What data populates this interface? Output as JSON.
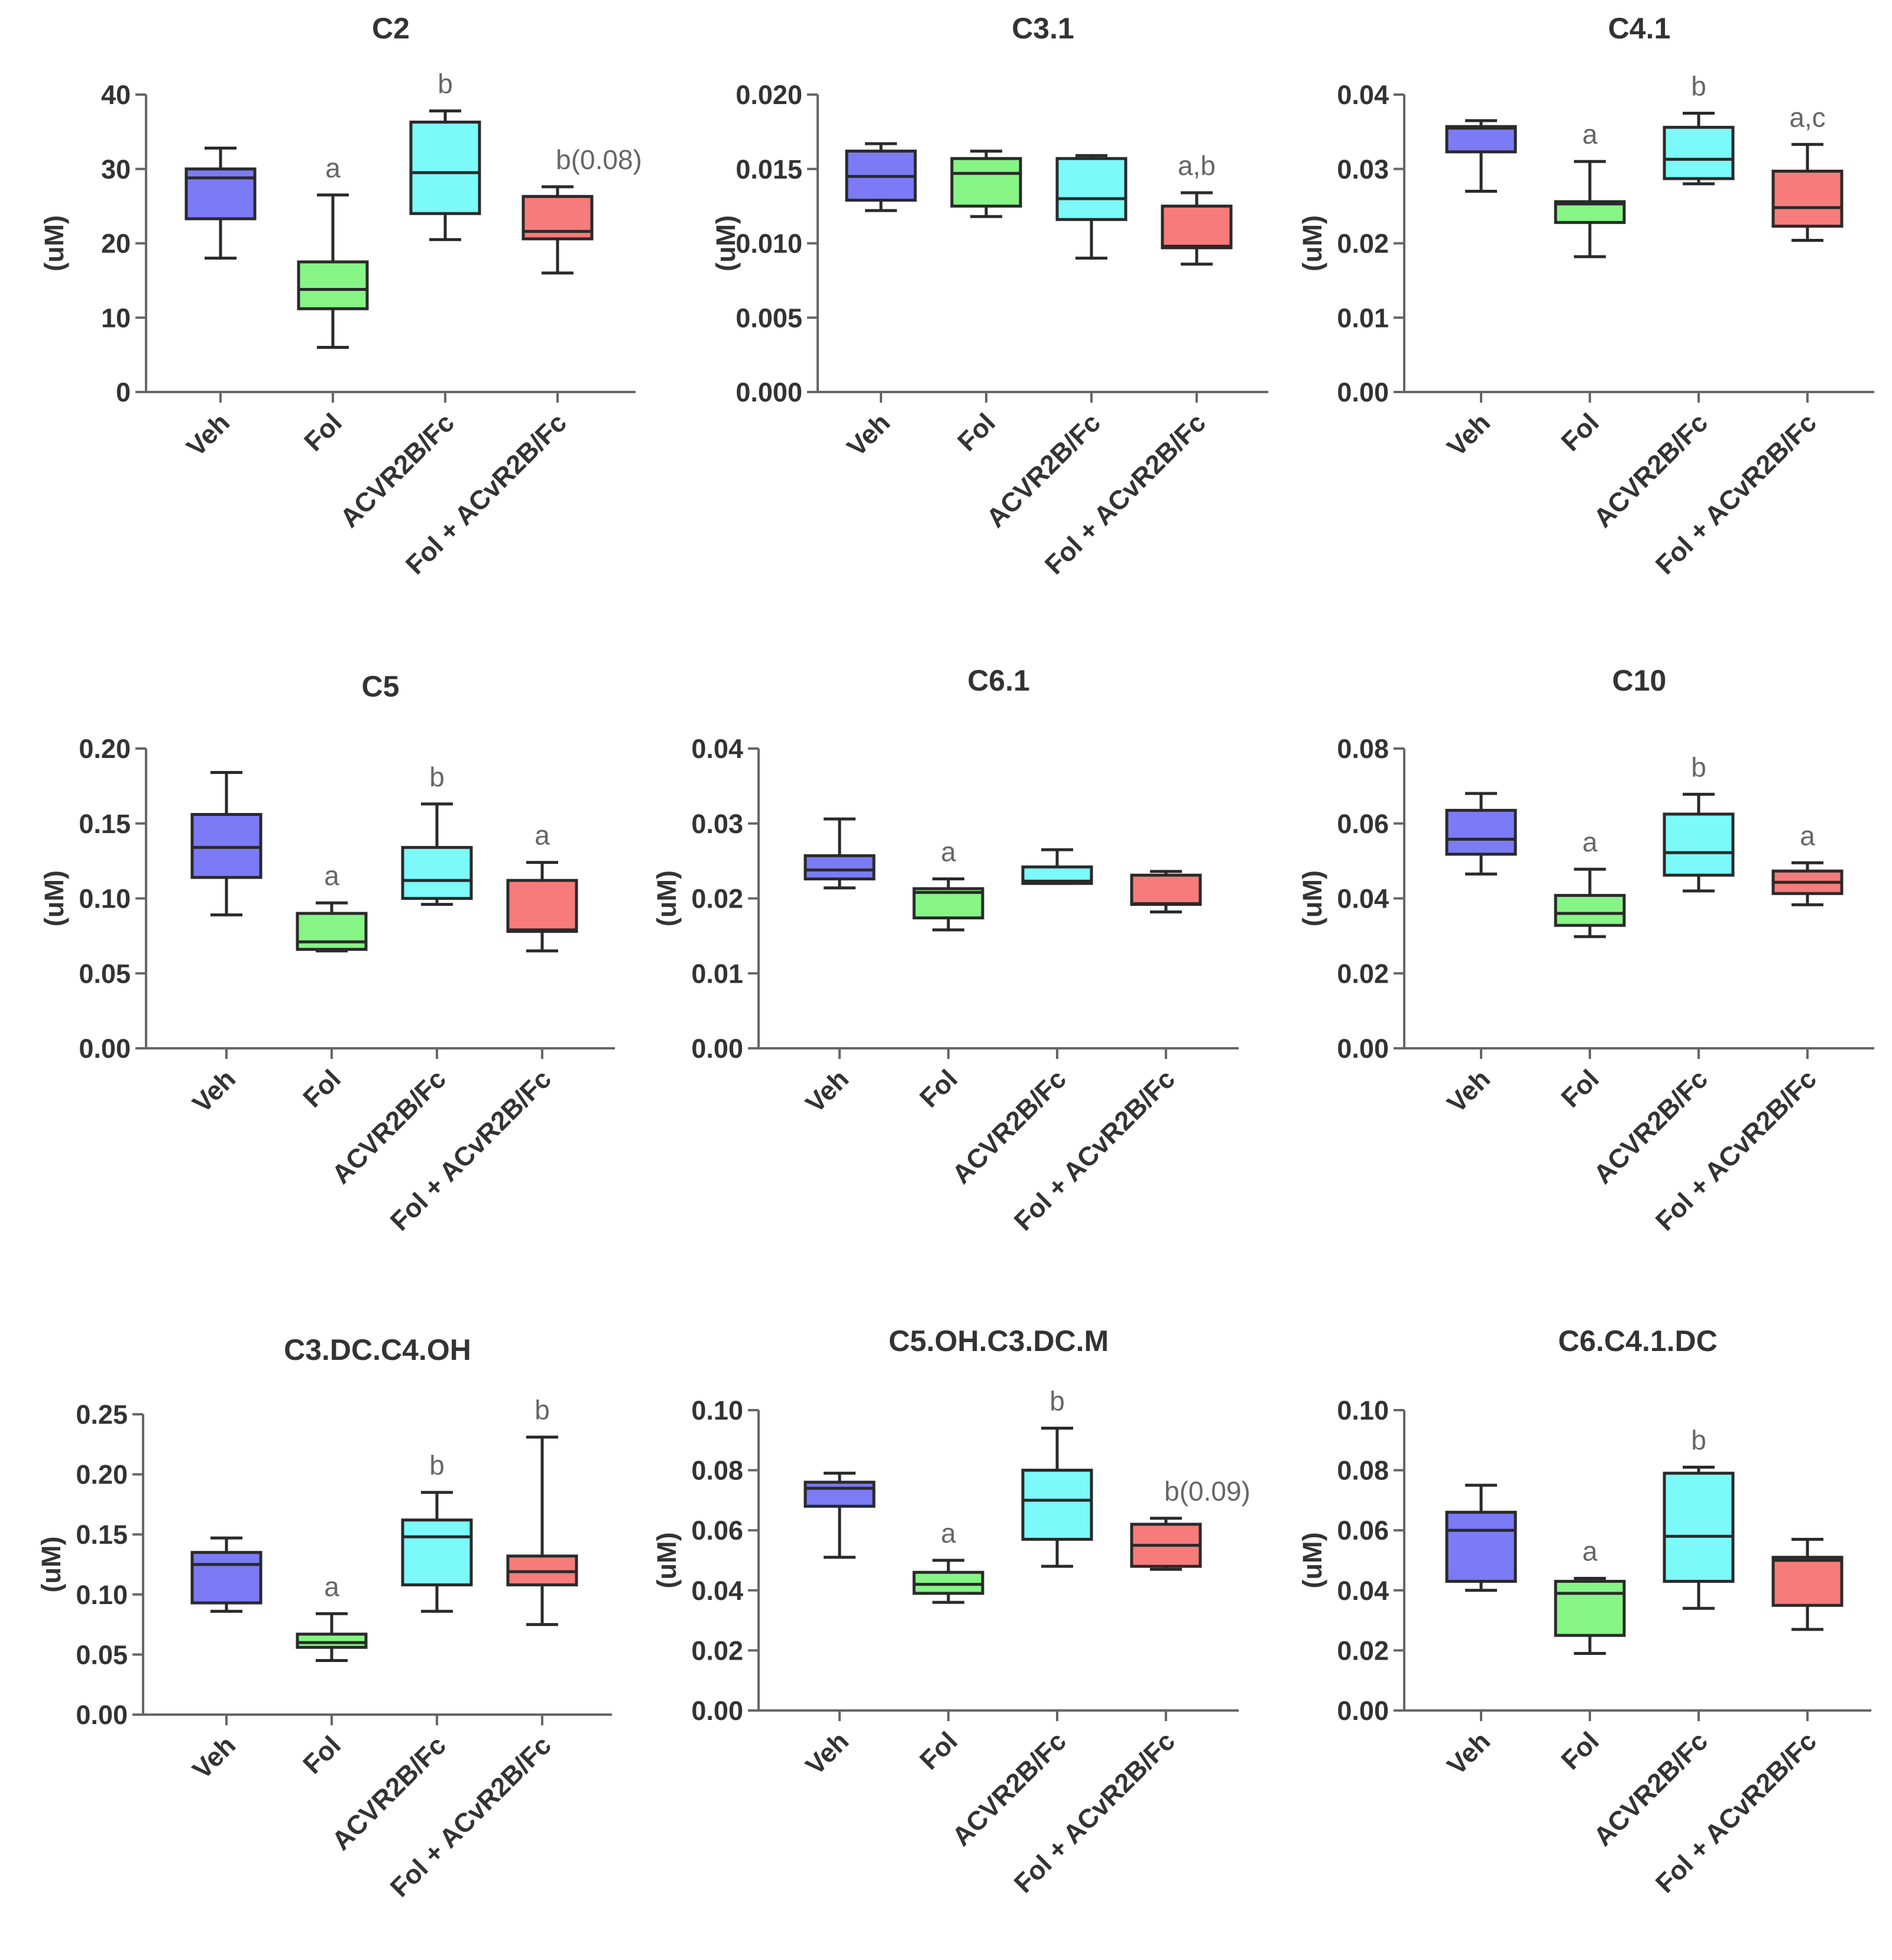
{
  "colors": {
    "Veh": "#7b7bf5",
    "Fol": "#86f586",
    "ACVR2B/Fc": "#7cf9f9",
    "Fol + ACvR2B/Fc": "#f77b7b"
  },
  "chart_data": [
    {
      "type": "box",
      "title": "C2",
      "ylabel": "(uM)",
      "categories": [
        "Veh",
        "Fol",
        "ACVR2B/Fc",
        "Fol + ACvR2B/Fc"
      ],
      "ylim": [
        0,
        40
      ],
      "yticks": [
        "0",
        "10",
        "20",
        "30",
        "40"
      ],
      "boxes": [
        {
          "min": 18,
          "q1": 23.3,
          "median": 28.8,
          "q3": 30,
          "max": 32.8,
          "sig": ""
        },
        {
          "min": 6,
          "q1": 11.2,
          "median": 13.8,
          "q3": 17.5,
          "max": 26.5,
          "sig": "a"
        },
        {
          "min": 20.5,
          "q1": 24,
          "median": 29.5,
          "q3": 36.3,
          "max": 37.8,
          "sig": "b"
        },
        {
          "min": 16,
          "q1": 20.6,
          "median": 21.6,
          "q3": 26.3,
          "max": 27.6,
          "sig": "b(0.08)"
        }
      ]
    },
    {
      "type": "box",
      "title": "C3.1",
      "ylabel": "(uM)",
      "categories": [
        "Veh",
        "Fol",
        "ACVR2B/Fc",
        "Fol + ACvR2B/Fc"
      ],
      "ylim": [
        0,
        0.02
      ],
      "yticks": [
        "0.000",
        "0.005",
        "0.010",
        "0.015",
        "0.020"
      ],
      "boxes": [
        {
          "min": 0.0122,
          "q1": 0.0129,
          "median": 0.0145,
          "q3": 0.0162,
          "max": 0.0167,
          "sig": ""
        },
        {
          "min": 0.0118,
          "q1": 0.0125,
          "median": 0.0147,
          "q3": 0.0157,
          "max": 0.0162,
          "sig": ""
        },
        {
          "min": 0.009,
          "q1": 0.0116,
          "median": 0.013,
          "q3": 0.0157,
          "max": 0.0159,
          "sig": ""
        },
        {
          "min": 0.0086,
          "q1": 0.0097,
          "median": 0.0098,
          "q3": 0.0125,
          "max": 0.0134,
          "sig": "a,b"
        }
      ]
    },
    {
      "type": "box",
      "title": "C4.1",
      "ylabel": "(uM)",
      "categories": [
        "Veh",
        "Fol",
        "ACVR2B/Fc",
        "Fol + ACvR2B/Fc"
      ],
      "ylim": [
        0,
        0.04
      ],
      "yticks": [
        "0.00",
        "0.01",
        "0.02",
        "0.03",
        "0.04"
      ],
      "boxes": [
        {
          "min": 0.027,
          "q1": 0.0323,
          "median": 0.0355,
          "q3": 0.0357,
          "max": 0.0365,
          "sig": ""
        },
        {
          "min": 0.0182,
          "q1": 0.0228,
          "median": 0.0253,
          "q3": 0.0256,
          "max": 0.031,
          "sig": "a"
        },
        {
          "min": 0.028,
          "q1": 0.0287,
          "median": 0.0313,
          "q3": 0.0356,
          "max": 0.0375,
          "sig": "b"
        },
        {
          "min": 0.0204,
          "q1": 0.0223,
          "median": 0.0248,
          "q3": 0.0297,
          "max": 0.0333,
          "sig": "a,c"
        }
      ]
    },
    {
      "type": "box",
      "title": "C5",
      "ylabel": "(uM)",
      "categories": [
        "Veh",
        "Fol",
        "ACVR2B/Fc",
        "Fol + ACvR2B/Fc"
      ],
      "ylim": [
        0,
        0.2
      ],
      "yticks": [
        "0.00",
        "0.05",
        "0.10",
        "0.15",
        "0.20"
      ],
      "boxes": [
        {
          "min": 0.089,
          "q1": 0.114,
          "median": 0.134,
          "q3": 0.156,
          "max": 0.184,
          "sig": ""
        },
        {
          "min": 0.065,
          "q1": 0.066,
          "median": 0.071,
          "q3": 0.09,
          "max": 0.097,
          "sig": "a"
        },
        {
          "min": 0.096,
          "q1": 0.1,
          "median": 0.112,
          "q3": 0.134,
          "max": 0.163,
          "sig": "b"
        },
        {
          "min": 0.065,
          "q1": 0.078,
          "median": 0.079,
          "q3": 0.112,
          "max": 0.124,
          "sig": "a"
        }
      ]
    },
    {
      "type": "box",
      "title": "C6.1",
      "ylabel": "(uM)",
      "categories": [
        "Veh",
        "Fol",
        "ACVR2B/Fc",
        "Fol + ACvR2B/Fc"
      ],
      "ylim": [
        0,
        0.04
      ],
      "yticks": [
        "0.00",
        "0.01",
        "0.02",
        "0.03",
        "0.04"
      ],
      "boxes": [
        {
          "min": 0.0214,
          "q1": 0.0226,
          "median": 0.0238,
          "q3": 0.0257,
          "max": 0.0306,
          "sig": ""
        },
        {
          "min": 0.0158,
          "q1": 0.0174,
          "median": 0.0208,
          "q3": 0.0213,
          "max": 0.0226,
          "sig": "a"
        },
        {
          "min": 0.022,
          "q1": 0.022,
          "median": 0.0223,
          "q3": 0.0242,
          "max": 0.0265,
          "sig": ""
        },
        {
          "min": 0.0182,
          "q1": 0.0192,
          "median": 0.0193,
          "q3": 0.0231,
          "max": 0.0236,
          "sig": ""
        }
      ]
    },
    {
      "type": "box",
      "title": "C10",
      "ylabel": "(uM)",
      "categories": [
        "Veh",
        "Fol",
        "ACVR2B/Fc",
        "Fol + ACvR2B/Fc"
      ],
      "ylim": [
        0,
        0.08
      ],
      "yticks": [
        "0.00",
        "0.02",
        "0.04",
        "0.06",
        "0.08"
      ],
      "boxes": [
        {
          "min": 0.0465,
          "q1": 0.0518,
          "median": 0.0558,
          "q3": 0.0635,
          "max": 0.068,
          "sig": ""
        },
        {
          "min": 0.0298,
          "q1": 0.0328,
          "median": 0.036,
          "q3": 0.0408,
          "max": 0.0478,
          "sig": "a"
        },
        {
          "min": 0.042,
          "q1": 0.0462,
          "median": 0.0522,
          "q3": 0.0625,
          "max": 0.0678,
          "sig": "b"
        },
        {
          "min": 0.0383,
          "q1": 0.0413,
          "median": 0.0443,
          "q3": 0.0473,
          "max": 0.0495,
          "sig": "a"
        }
      ]
    },
    {
      "type": "box",
      "title": "C3.DC.C4.OH",
      "ylabel": "(uM)",
      "categories": [
        "Veh",
        "Fol",
        "ACVR2B/Fc",
        "Fol + ACvR2B/Fc"
      ],
      "ylim": [
        0,
        0.25
      ],
      "yticks": [
        "0.00",
        "0.05",
        "0.10",
        "0.15",
        "0.20",
        "0.25"
      ],
      "boxes": [
        {
          "min": 0.086,
          "q1": 0.093,
          "median": 0.125,
          "q3": 0.135,
          "max": 0.147,
          "sig": ""
        },
        {
          "min": 0.045,
          "q1": 0.056,
          "median": 0.06,
          "q3": 0.067,
          "max": 0.084,
          "sig": "a"
        },
        {
          "min": 0.086,
          "q1": 0.108,
          "median": 0.148,
          "q3": 0.162,
          "max": 0.185,
          "sig": "b"
        },
        {
          "min": 0.075,
          "q1": 0.108,
          "median": 0.119,
          "q3": 0.132,
          "max": 0.231,
          "sig": "b"
        }
      ]
    },
    {
      "type": "box",
      "title": "C5.OH.C3.DC.M",
      "ylabel": "(uM)",
      "categories": [
        "Veh",
        "Fol",
        "ACVR2B/Fc",
        "Fol + ACvR2B/Fc"
      ],
      "ylim": [
        0,
        0.1
      ],
      "yticks": [
        "0.00",
        "0.02",
        "0.04",
        "0.06",
        "0.08",
        "0.10"
      ],
      "boxes": [
        {
          "min": 0.051,
          "q1": 0.068,
          "median": 0.074,
          "q3": 0.076,
          "max": 0.079,
          "sig": ""
        },
        {
          "min": 0.036,
          "q1": 0.039,
          "median": 0.042,
          "q3": 0.046,
          "max": 0.05,
          "sig": "a"
        },
        {
          "min": 0.048,
          "q1": 0.057,
          "median": 0.07,
          "q3": 0.08,
          "max": 0.094,
          "sig": "b"
        },
        {
          "min": 0.047,
          "q1": 0.048,
          "median": 0.055,
          "q3": 0.062,
          "max": 0.064,
          "sig": "b(0.09)"
        }
      ]
    },
    {
      "type": "box",
      "title": "C6.C4.1.DC",
      "ylabel": "(uM)",
      "categories": [
        "Veh",
        "Fol",
        "ACVR2B/Fc",
        "Fol + ACvR2B/Fc"
      ],
      "ylim": [
        0,
        0.1
      ],
      "yticks": [
        "0.00",
        "0.02",
        "0.04",
        "0.06",
        "0.08",
        "0.10"
      ],
      "boxes": [
        {
          "min": 0.04,
          "q1": 0.043,
          "median": 0.06,
          "q3": 0.066,
          "max": 0.075,
          "sig": ""
        },
        {
          "min": 0.019,
          "q1": 0.025,
          "median": 0.039,
          "q3": 0.043,
          "max": 0.044,
          "sig": "a"
        },
        {
          "min": 0.034,
          "q1": 0.043,
          "median": 0.058,
          "q3": 0.079,
          "max": 0.081,
          "sig": "b"
        },
        {
          "min": 0.027,
          "q1": 0.035,
          "median": 0.05,
          "q3": 0.051,
          "max": 0.057,
          "sig": ""
        }
      ]
    }
  ]
}
